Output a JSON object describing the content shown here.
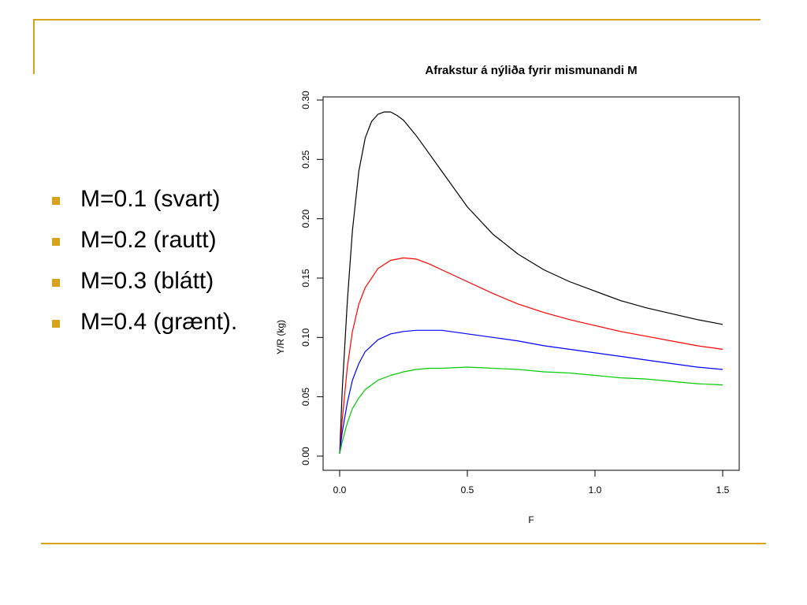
{
  "slide": {
    "bullets": [
      "M=0.1 (svart)",
      "M=0.2 (rautt)",
      "M=0.3 (blátt)",
      "M=0.4 (grænt)."
    ],
    "accent_color": "#d9a21b"
  },
  "chart_data": {
    "type": "line",
    "title": "Afrakstur á nýliða fyrir mismunandi M",
    "xlabel": "F",
    "ylabel": "Y/R (kg)",
    "xlim": [
      0,
      1.5
    ],
    "ylim": [
      0,
      0.3
    ],
    "xticks": [
      0,
      0.5,
      1,
      1.5
    ],
    "xtick_labels": [
      "0.0",
      "0.5",
      "1.0",
      "1.5"
    ],
    "yticks": [
      0,
      0.05,
      0.1,
      0.15,
      0.2,
      0.25,
      0.3
    ],
    "ytick_labels": [
      "0.00",
      "0.05",
      "0.10",
      "0.15",
      "0.20",
      "0.25",
      "0.30"
    ],
    "grid": false,
    "series": [
      {
        "color": "#000000",
        "x": [
          0,
          0.01,
          0.03,
          0.05,
          0.075,
          0.1,
          0.125,
          0.15,
          0.175,
          0.2,
          0.225,
          0.25,
          0.3,
          0.35,
          0.4,
          0.5,
          0.6,
          0.7,
          0.8,
          0.9,
          1.0,
          1.1,
          1.2,
          1.3,
          1.4,
          1.5
        ],
        "y": [
          0.002,
          0.055,
          0.13,
          0.19,
          0.24,
          0.268,
          0.282,
          0.288,
          0.29,
          0.29,
          0.287,
          0.283,
          0.27,
          0.255,
          0.24,
          0.21,
          0.187,
          0.17,
          0.157,
          0.147,
          0.139,
          0.131,
          0.125,
          0.12,
          0.115,
          0.111
        ]
      },
      {
        "color": "#ff0000",
        "x": [
          0,
          0.01,
          0.03,
          0.05,
          0.075,
          0.1,
          0.15,
          0.2,
          0.25,
          0.3,
          0.35,
          0.4,
          0.5,
          0.6,
          0.7,
          0.8,
          0.9,
          1.0,
          1.1,
          1.2,
          1.3,
          1.4,
          1.5
        ],
        "y": [
          0.002,
          0.03,
          0.075,
          0.105,
          0.128,
          0.142,
          0.158,
          0.165,
          0.167,
          0.166,
          0.162,
          0.157,
          0.147,
          0.137,
          0.128,
          0.121,
          0.115,
          0.11,
          0.105,
          0.101,
          0.097,
          0.093,
          0.09
        ]
      },
      {
        "color": "#0000ff",
        "x": [
          0,
          0.01,
          0.03,
          0.05,
          0.075,
          0.1,
          0.15,
          0.2,
          0.25,
          0.3,
          0.35,
          0.4,
          0.5,
          0.6,
          0.7,
          0.8,
          0.9,
          1.0,
          1.1,
          1.2,
          1.3,
          1.4,
          1.5
        ],
        "y": [
          0.002,
          0.02,
          0.045,
          0.064,
          0.078,
          0.088,
          0.098,
          0.103,
          0.105,
          0.106,
          0.106,
          0.106,
          0.103,
          0.1,
          0.097,
          0.093,
          0.09,
          0.087,
          0.084,
          0.081,
          0.078,
          0.075,
          0.073
        ]
      },
      {
        "color": "#00cc00",
        "x": [
          0,
          0.01,
          0.03,
          0.05,
          0.075,
          0.1,
          0.15,
          0.2,
          0.25,
          0.3,
          0.35,
          0.4,
          0.5,
          0.6,
          0.7,
          0.8,
          0.9,
          1.0,
          1.1,
          1.2,
          1.3,
          1.4,
          1.5
        ],
        "y": [
          0.002,
          0.012,
          0.028,
          0.04,
          0.049,
          0.056,
          0.064,
          0.068,
          0.071,
          0.073,
          0.074,
          0.074,
          0.075,
          0.074,
          0.073,
          0.071,
          0.07,
          0.068,
          0.066,
          0.065,
          0.063,
          0.061,
          0.06
        ]
      }
    ]
  }
}
